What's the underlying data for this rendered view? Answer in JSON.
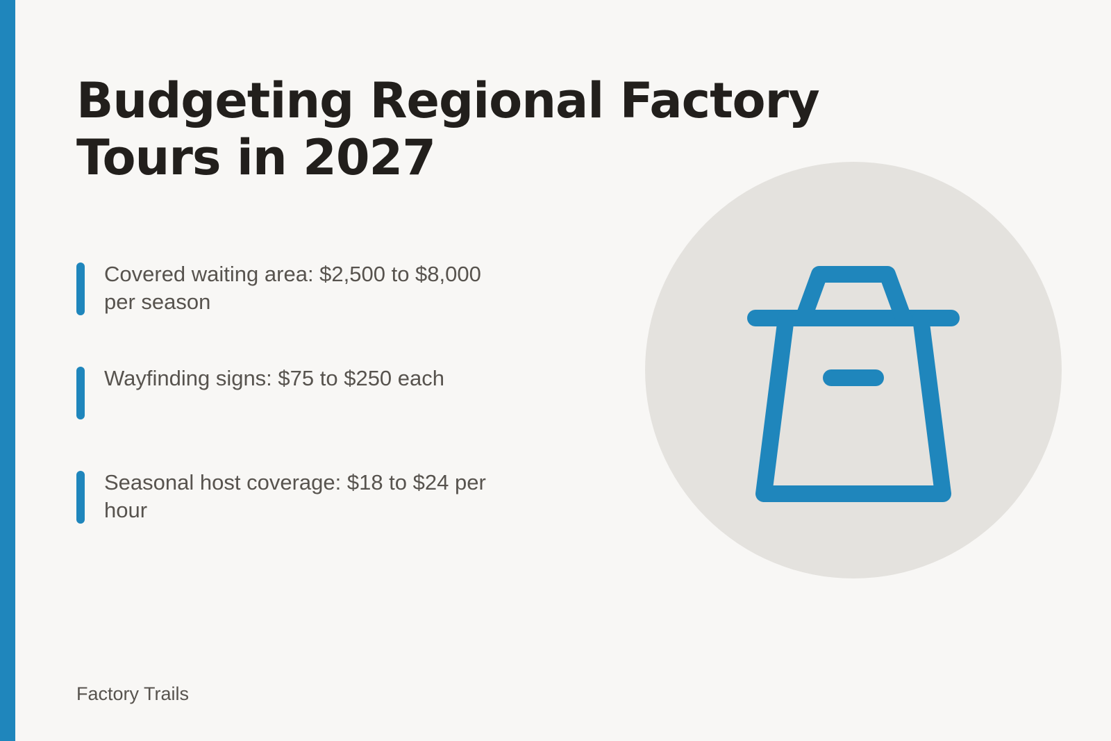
{
  "title": "Budgeting Regional Factory Tours in 2027",
  "items": [
    {
      "text": "Covered waiting area: $2,500 to $8,000 per season"
    },
    {
      "text": "Wayfinding signs: $75 to $250 each"
    },
    {
      "text": "Seasonal host coverage: $18 to $24 per hour"
    }
  ],
  "footer": "Factory Trails",
  "illustration": {
    "icon": "shopping-bag-icon"
  },
  "colors": {
    "accent": "#1f86bc",
    "background": "#f8f7f5",
    "circle": "#e4e2de",
    "title": "#221f1c",
    "text": "#57534e"
  }
}
